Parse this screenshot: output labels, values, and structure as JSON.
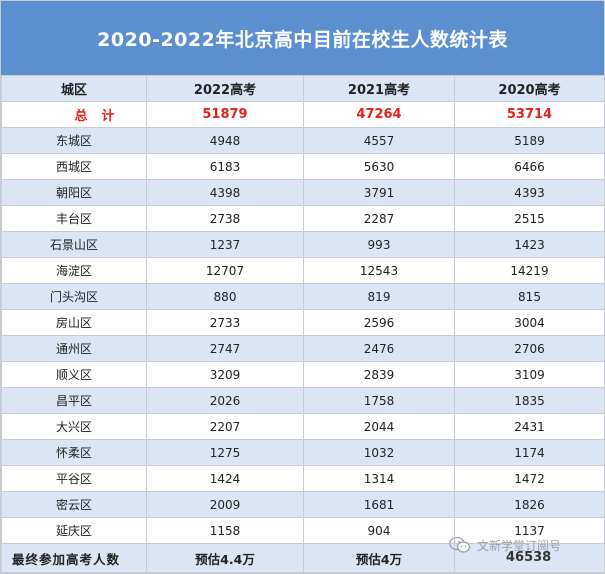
{
  "title": "2020-2022年北京高中目前在校生人数统计表",
  "headers": [
    "城区",
    "2022高考",
    "2021高考",
    "2020高考"
  ],
  "total": {
    "label": "总计",
    "values": [
      "51879",
      "47264",
      "53714"
    ]
  },
  "rows": [
    {
      "district": "东城区",
      "values": [
        "4948",
        "4557",
        "5189"
      ]
    },
    {
      "district": "西城区",
      "values": [
        "6183",
        "5630",
        "6466"
      ]
    },
    {
      "district": "朝阳区",
      "values": [
        "4398",
        "3791",
        "4393"
      ]
    },
    {
      "district": "丰台区",
      "values": [
        "2738",
        "2287",
        "2515"
      ]
    },
    {
      "district": "石景山区",
      "values": [
        "1237",
        "993",
        "1423"
      ]
    },
    {
      "district": "海淀区",
      "values": [
        "12707",
        "12543",
        "14219"
      ]
    },
    {
      "district": "门头沟区",
      "values": [
        "880",
        "819",
        "815"
      ]
    },
    {
      "district": "房山区",
      "values": [
        "2733",
        "2596",
        "3004"
      ]
    },
    {
      "district": "通州区",
      "values": [
        "2747",
        "2476",
        "2706"
      ]
    },
    {
      "district": "顺义区",
      "values": [
        "3209",
        "2839",
        "3109"
      ]
    },
    {
      "district": "昌平区",
      "values": [
        "2026",
        "1758",
        "1835"
      ]
    },
    {
      "district": "大兴区",
      "values": [
        "2207",
        "2044",
        "2431"
      ]
    },
    {
      "district": "怀柔区",
      "values": [
        "1275",
        "1032",
        "1174"
      ]
    },
    {
      "district": "平谷区",
      "values": [
        "1424",
        "1314",
        "1472"
      ]
    },
    {
      "district": "密云区",
      "values": [
        "2009",
        "1681",
        "1826"
      ]
    },
    {
      "district": "延庆区",
      "values": [
        "1158",
        "904",
        "1137"
      ]
    }
  ],
  "footer": {
    "label": "最终参加高考人数",
    "values": [
      "预估4.4万",
      "预估4万",
      "46538"
    ]
  },
  "watermark": {
    "text": "文新学堂订阅号",
    "icon": "wechat-icon"
  },
  "colors": {
    "title_bg": "#5b8fd0",
    "band": "#dbe5f3",
    "total_text": "#e8201c",
    "border": "#c8ccd2"
  }
}
